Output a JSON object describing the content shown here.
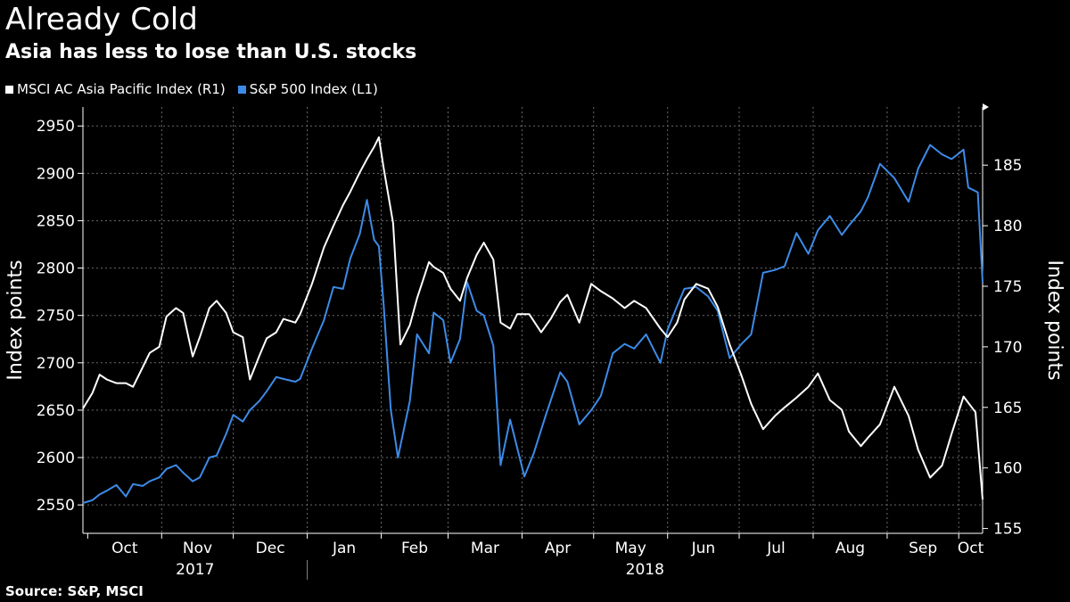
{
  "header": {
    "title": "Already Cold",
    "subtitle": "Asia has less to lose than U.S. stocks"
  },
  "footer": {
    "source": "Source: S&P, MSCI"
  },
  "colors": {
    "msci": "#ffffff",
    "spx": "#3d8be8",
    "grid": "#6a6a6a",
    "background": "#000000"
  },
  "chart_data": {
    "type": "line",
    "xlabel": "",
    "ylabel_left": "Index points",
    "ylabel_right": "Index points",
    "x_months": [
      "Oct",
      "Nov",
      "Dec",
      "Jan",
      "Feb",
      "Mar",
      "Apr",
      "May",
      "Jun",
      "Jul",
      "Aug",
      "Sep",
      "Oct"
    ],
    "x_years": [
      "2017",
      "2018"
    ],
    "x_range": [
      "2017-09-29",
      "2018-10-11"
    ],
    "left_axis": {
      "min": 2520,
      "max": 2970,
      "ticks": [
        2550,
        2600,
        2650,
        2700,
        2750,
        2800,
        2850,
        2900,
        2950
      ]
    },
    "right_axis": {
      "min": 154.6,
      "max": 189.8,
      "ticks": [
        155,
        160,
        165,
        170,
        175,
        180,
        185
      ]
    },
    "grid": true,
    "legend": "top-left",
    "series": [
      {
        "name": "MSCI AC Asia Pacific Index (R1)",
        "axis": "right",
        "x": [
          "2017-09-29",
          "2017-10-03",
          "2017-10-06",
          "2017-10-09",
          "2017-10-13",
          "2017-10-17",
          "2017-10-20",
          "2017-10-24",
          "2017-10-27",
          "2017-10-31",
          "2017-11-03",
          "2017-11-07",
          "2017-11-10",
          "2017-11-14",
          "2017-11-17",
          "2017-11-21",
          "2017-11-24",
          "2017-11-28",
          "2017-12-01",
          "2017-12-05",
          "2017-12-08",
          "2017-12-12",
          "2017-12-15",
          "2017-12-19",
          "2017-12-22",
          "2017-12-27",
          "2017-12-29",
          "2018-01-03",
          "2018-01-08",
          "2018-01-12",
          "2018-01-16",
          "2018-01-19",
          "2018-01-23",
          "2018-01-26",
          "2018-01-29",
          "2018-01-31",
          "2018-02-02",
          "2018-02-06",
          "2018-02-09",
          "2018-02-13",
          "2018-02-16",
          "2018-02-21",
          "2018-02-23",
          "2018-02-27",
          "2018-03-02",
          "2018-03-06",
          "2018-03-09",
          "2018-03-13",
          "2018-03-16",
          "2018-03-20",
          "2018-03-23",
          "2018-03-27",
          "2018-03-30",
          "2018-04-04",
          "2018-04-09",
          "2018-04-13",
          "2018-04-17",
          "2018-04-20",
          "2018-04-25",
          "2018-04-30",
          "2018-05-04",
          "2018-05-09",
          "2018-05-14",
          "2018-05-18",
          "2018-05-23",
          "2018-05-29",
          "2018-06-01",
          "2018-06-05",
          "2018-06-08",
          "2018-06-13",
          "2018-06-18",
          "2018-06-22",
          "2018-06-27",
          "2018-07-02",
          "2018-07-06",
          "2018-07-11",
          "2018-07-16",
          "2018-07-20",
          "2018-07-25",
          "2018-07-30",
          "2018-08-03",
          "2018-08-08",
          "2018-08-13",
          "2018-08-16",
          "2018-08-21",
          "2018-08-24",
          "2018-08-29",
          "2018-09-04",
          "2018-09-10",
          "2018-09-14",
          "2018-09-19",
          "2018-09-24",
          "2018-09-28",
          "2018-10-03",
          "2018-10-08",
          "2018-10-11"
        ],
        "values": [
          164.9,
          166.2,
          167.7,
          167.3,
          167.0,
          167.0,
          166.7,
          168.3,
          169.5,
          170.0,
          172.5,
          173.2,
          172.8,
          169.2,
          170.8,
          173.2,
          173.8,
          172.8,
          171.2,
          170.8,
          167.3,
          169.3,
          170.7,
          171.2,
          172.3,
          172.0,
          172.7,
          175.2,
          178.2,
          180.0,
          181.7,
          182.8,
          184.4,
          185.5,
          186.5,
          187.3,
          184.8,
          180.2,
          170.2,
          171.8,
          174.0,
          177.0,
          176.6,
          176.1,
          174.8,
          173.8,
          175.7,
          177.6,
          178.6,
          177.2,
          172.0,
          171.5,
          172.7,
          172.7,
          171.2,
          172.3,
          173.7,
          174.3,
          172.0,
          175.2,
          174.6,
          174.0,
          173.2,
          173.8,
          173.2,
          171.5,
          170.8,
          172.0,
          173.9,
          175.2,
          174.8,
          173.3,
          170.2,
          167.6,
          165.3,
          163.2,
          164.3,
          165.0,
          165.8,
          166.7,
          167.8,
          165.6,
          164.8,
          163.0,
          161.8,
          162.5,
          163.6,
          166.7,
          164.3,
          161.5,
          159.2,
          160.2,
          162.8,
          165.9,
          164.6,
          157.4
        ]
      },
      {
        "name": "S&P 500 Index (L1)",
        "axis": "left",
        "x": [
          "2017-09-29",
          "2017-10-03",
          "2017-10-06",
          "2017-10-09",
          "2017-10-13",
          "2017-10-17",
          "2017-10-20",
          "2017-10-24",
          "2017-10-27",
          "2017-10-31",
          "2017-11-03",
          "2017-11-07",
          "2017-11-10",
          "2017-11-14",
          "2017-11-17",
          "2017-11-21",
          "2017-11-24",
          "2017-11-28",
          "2017-12-01",
          "2017-12-05",
          "2017-12-08",
          "2017-12-12",
          "2017-12-15",
          "2017-12-19",
          "2017-12-22",
          "2017-12-27",
          "2017-12-29",
          "2018-01-03",
          "2018-01-08",
          "2018-01-12",
          "2018-01-16",
          "2018-01-19",
          "2018-01-23",
          "2018-01-26",
          "2018-01-29",
          "2018-01-31",
          "2018-02-02",
          "2018-02-05",
          "2018-02-08",
          "2018-02-13",
          "2018-02-16",
          "2018-02-21",
          "2018-02-23",
          "2018-02-27",
          "2018-03-02",
          "2018-03-06",
          "2018-03-09",
          "2018-03-13",
          "2018-03-16",
          "2018-03-20",
          "2018-03-23",
          "2018-03-27",
          "2018-04-02",
          "2018-04-06",
          "2018-04-11",
          "2018-04-17",
          "2018-04-20",
          "2018-04-25",
          "2018-04-30",
          "2018-05-04",
          "2018-05-09",
          "2018-05-14",
          "2018-05-18",
          "2018-05-23",
          "2018-05-29",
          "2018-06-01",
          "2018-06-05",
          "2018-06-08",
          "2018-06-13",
          "2018-06-18",
          "2018-06-22",
          "2018-06-27",
          "2018-07-02",
          "2018-07-06",
          "2018-07-11",
          "2018-07-16",
          "2018-07-20",
          "2018-07-25",
          "2018-07-30",
          "2018-08-03",
          "2018-08-08",
          "2018-08-13",
          "2018-08-16",
          "2018-08-21",
          "2018-08-24",
          "2018-08-29",
          "2018-09-04",
          "2018-09-10",
          "2018-09-14",
          "2018-09-19",
          "2018-09-24",
          "2018-09-28",
          "2018-10-03",
          "2018-10-05",
          "2018-10-09",
          "2018-10-11"
        ],
        "values": [
          2552,
          2555,
          2561,
          2565,
          2571,
          2559,
          2572,
          2570,
          2575,
          2579,
          2588,
          2592,
          2584,
          2575,
          2579,
          2600,
          2602,
          2625,
          2645,
          2638,
          2650,
          2660,
          2670,
          2685,
          2683,
          2680,
          2683,
          2715,
          2745,
          2780,
          2778,
          2810,
          2836,
          2872,
          2830,
          2823,
          2762,
          2650,
          2600,
          2660,
          2730,
          2710,
          2753,
          2745,
          2700,
          2725,
          2785,
          2755,
          2750,
          2718,
          2592,
          2640,
          2580,
          2605,
          2645,
          2690,
          2680,
          2635,
          2650,
          2665,
          2710,
          2720,
          2715,
          2730,
          2700,
          2735,
          2760,
          2778,
          2780,
          2770,
          2755,
          2705,
          2720,
          2730,
          2795,
          2798,
          2802,
          2837,
          2815,
          2840,
          2855,
          2835,
          2845,
          2860,
          2875,
          2910,
          2895,
          2870,
          2905,
          2930,
          2920,
          2915,
          2925,
          2885,
          2880,
          2785
        ]
      }
    ]
  }
}
